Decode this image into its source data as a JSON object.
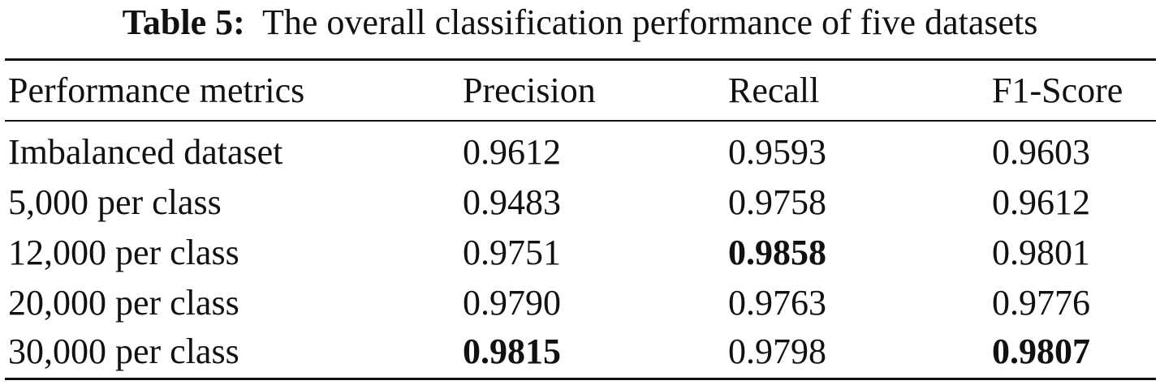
{
  "caption": {
    "label": "Table 5:",
    "text": "The overall classification performance of five datasets"
  },
  "table": {
    "headers": [
      "Performance metrics",
      "Precision",
      "Recall",
      "F1-Score"
    ],
    "rows": [
      [
        "Imbalanced dataset",
        "0.9612",
        "0.9593",
        "0.9603"
      ],
      [
        "5,000 per class",
        "0.9483",
        "0.9758",
        "0.9612"
      ],
      [
        "12,000 per class",
        "0.9751",
        "0.9858",
        "0.9801"
      ],
      [
        "20,000 per class",
        "0.9790",
        "0.9763",
        "0.9776"
      ],
      [
        "30,000 per class",
        "0.9815",
        "0.9798",
        "0.9807"
      ]
    ],
    "bold_cells": [
      "2-2",
      "4-1",
      "4-3"
    ]
  }
}
